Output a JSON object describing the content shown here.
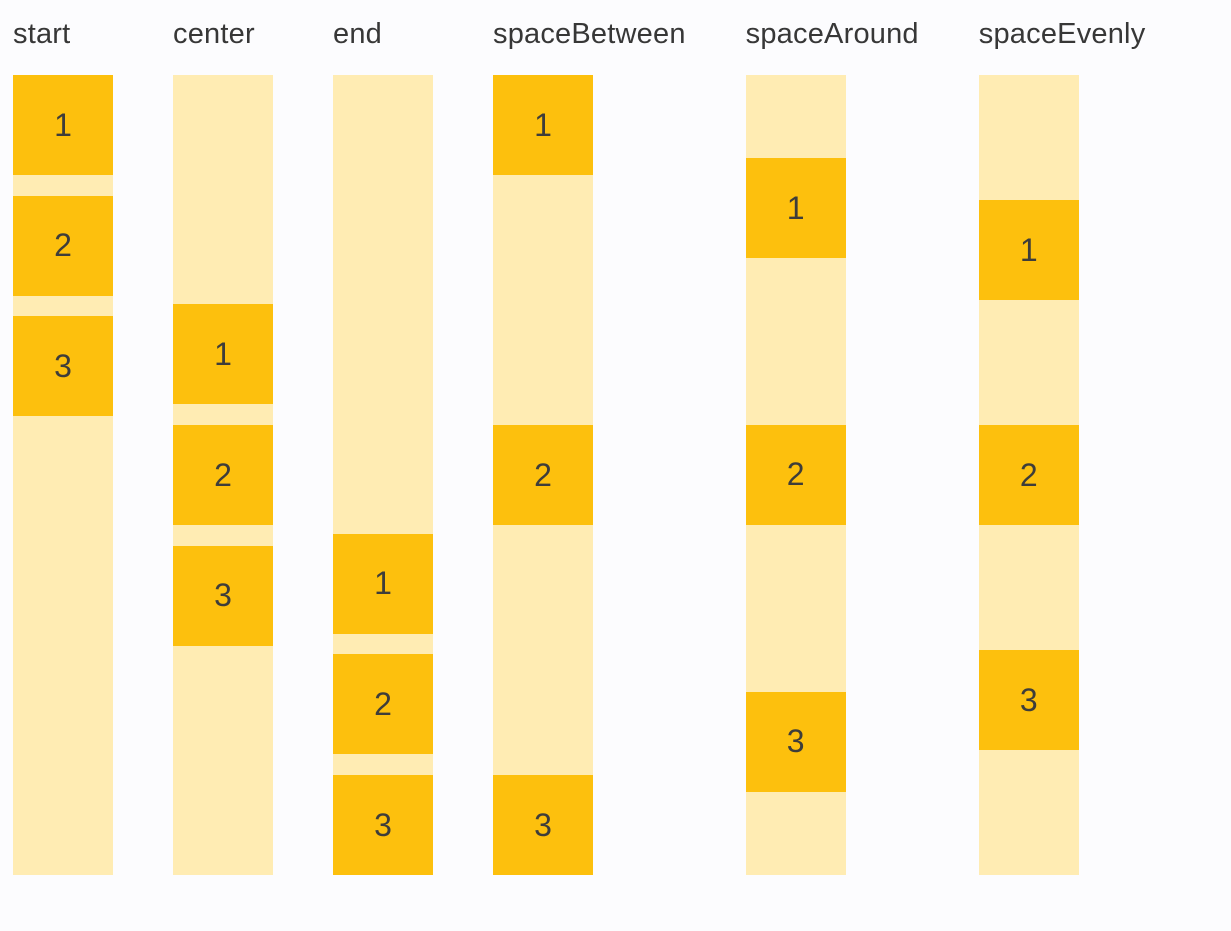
{
  "colors": {
    "background": "#FCFCFE",
    "track": "#FFECB3",
    "box": "#FDC00D",
    "header_text": "#373737",
    "box_text": "#3E3D3A"
  },
  "groups": [
    {
      "label": "start",
      "items": [
        "1",
        "2",
        "3"
      ]
    },
    {
      "label": "center",
      "items": [
        "1",
        "2",
        "3"
      ]
    },
    {
      "label": "end",
      "items": [
        "1",
        "2",
        "3"
      ]
    },
    {
      "label": "spaceBetween",
      "items": [
        "1",
        "2",
        "3"
      ]
    },
    {
      "label": "spaceAround",
      "items": [
        "1",
        "2",
        "3"
      ]
    },
    {
      "label": "spaceEvenly",
      "items": [
        "1",
        "2",
        "3"
      ]
    }
  ]
}
